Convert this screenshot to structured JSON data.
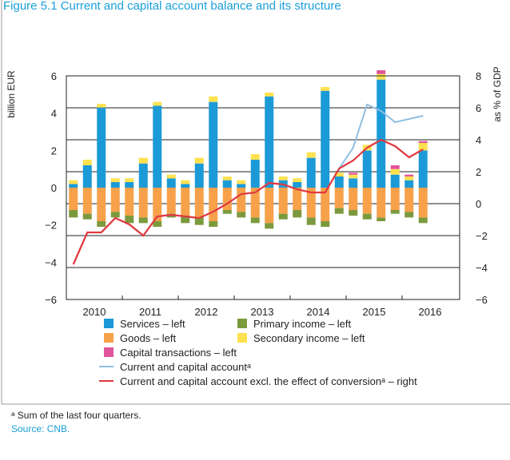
{
  "chart_data": {
    "type": "bar",
    "title": "Figure 5.1 Current and capital account balance and its structure",
    "y_label": "billion EUR",
    "y2_label": "as % of GDP",
    "categories": [
      "2010",
      null,
      null,
      null,
      "2011",
      null,
      null,
      null,
      "2012",
      null,
      null,
      null,
      "2013",
      null,
      null,
      null,
      "2014",
      null,
      null,
      null,
      "2015",
      null,
      null,
      null,
      "2016",
      null
    ],
    "ylim": [
      -6,
      6
    ],
    "yticks": [
      {
        "value": -6,
        "label": "−6"
      },
      {
        "value": -4,
        "label": "−4"
      },
      {
        "value": -2,
        "label": "−2"
      },
      0,
      2,
      4,
      6
    ],
    "y2lim": [
      -6,
      8
    ],
    "y2ticks": [
      {
        "value": -6,
        "label": "−6"
      },
      {
        "value": -4,
        "label": "−4"
      },
      {
        "value": -2,
        "label": "−2"
      },
      0,
      2,
      4,
      6,
      8
    ],
    "grid": true,
    "series": [
      {
        "name": "Services – left",
        "type": "bar",
        "color": "#1b9ad7",
        "values": [
          0.2,
          1.2,
          4.3,
          0.3,
          0.3,
          1.3,
          4.4,
          0.5,
          0.2,
          1.3,
          4.6,
          0.4,
          0.2,
          1.5,
          4.9,
          0.4,
          0.3,
          1.6,
          5.2,
          0.6,
          0.5,
          2.0,
          5.8,
          0.7,
          0.4,
          2.0
        ]
      },
      {
        "name": "Goods – left",
        "type": "bar",
        "color": "#f7a14a",
        "values": [
          -1.2,
          -1.4,
          -1.8,
          -1.3,
          -1.5,
          -1.6,
          -1.8,
          -1.4,
          -1.5,
          -1.6,
          -1.8,
          -1.2,
          -1.3,
          -1.6,
          -1.9,
          -1.4,
          -1.2,
          -1.6,
          -1.8,
          -1.1,
          -1.2,
          -1.4,
          -1.6,
          -1.2,
          -1.3,
          -1.6
        ]
      },
      {
        "name": "Primary income – left",
        "type": "bar",
        "color": "#7b9a3d",
        "values": [
          -0.4,
          -0.3,
          -0.3,
          -0.3,
          -0.4,
          -0.3,
          -0.3,
          -0.2,
          -0.4,
          -0.4,
          -0.3,
          -0.2,
          -0.3,
          -0.3,
          -0.3,
          -0.3,
          -0.4,
          -0.4,
          -0.3,
          -0.3,
          -0.3,
          -0.3,
          -0.2,
          -0.2,
          -0.3,
          -0.3
        ]
      },
      {
        "name": "Secondary income – left",
        "type": "bar",
        "color": "#fde14f",
        "values": [
          0.2,
          0.3,
          0.2,
          0.2,
          0.2,
          0.3,
          0.2,
          0.2,
          0.2,
          0.3,
          0.3,
          0.2,
          0.2,
          0.3,
          0.2,
          0.2,
          0.2,
          0.3,
          0.2,
          0.2,
          0.2,
          0.3,
          0.3,
          0.3,
          0.2,
          0.4
        ]
      },
      {
        "name": "Capital transactions – left",
        "type": "bar",
        "color": "#e0559b",
        "values": [
          0,
          0,
          0,
          0,
          0,
          0,
          0,
          0,
          0,
          0,
          0,
          0,
          0,
          0,
          0,
          0,
          0,
          0,
          0,
          0,
          0.1,
          0,
          0.2,
          0.2,
          0.1,
          0.1
        ]
      },
      {
        "name": "Current and capital accountᵃ",
        "type": "line",
        "axis": "y2",
        "color": "#8fbfe2",
        "values": [
          -3.8,
          -1.8,
          -1.8,
          -0.9,
          -1.3,
          -2.0,
          -0.8,
          -0.7,
          -0.8,
          -0.9,
          -0.5,
          0.0,
          0.6,
          0.7,
          1.3,
          1.2,
          0.9,
          0.7,
          0.7,
          2.2,
          3.5,
          6.2,
          5.8,
          5.1,
          5.3,
          5.5
        ]
      },
      {
        "name": "Current and capital account excl. the effect of conversionᵃ – right",
        "type": "line",
        "axis": "y2",
        "color": "#e2373d",
        "values": [
          -3.8,
          -1.8,
          -1.8,
          -0.9,
          -1.3,
          -2.0,
          -0.8,
          -0.7,
          -0.8,
          -0.9,
          -0.5,
          0.0,
          0.6,
          0.7,
          1.3,
          1.2,
          0.9,
          0.7,
          0.7,
          2.2,
          2.7,
          3.5,
          4.0,
          3.6,
          2.9,
          3.4
        ]
      }
    ],
    "footnote": "ᵃ Sum of the last four quarters.",
    "source": "Source: CNB."
  }
}
